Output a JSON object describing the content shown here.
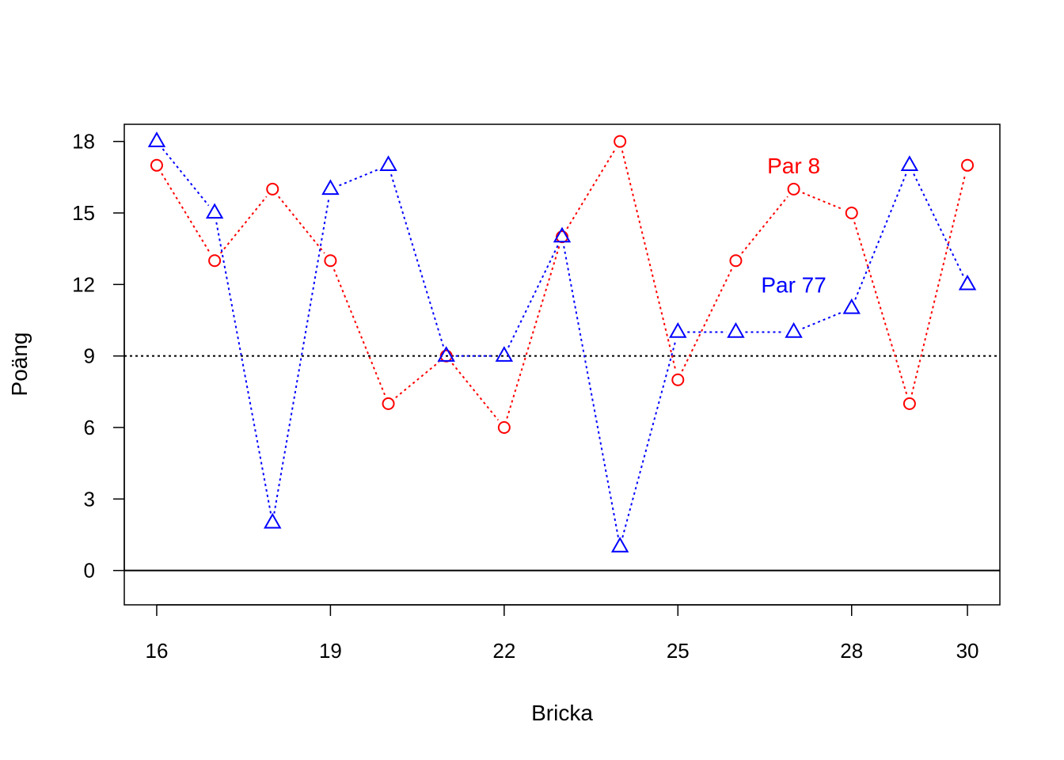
{
  "chart_data": {
    "type": "line",
    "xlabel": "Bricka",
    "ylabel": "Poäng",
    "xlim": [
      15.44,
      30.56
    ],
    "ylim": [
      -1.44,
      18.72
    ],
    "x_ticks": [
      "16",
      "19",
      "22",
      "25",
      "28",
      "30"
    ],
    "y_ticks": [
      "0",
      "3",
      "6",
      "9",
      "12",
      "15",
      "18"
    ],
    "reference_lines": [
      {
        "y": 9,
        "style": "dotted",
        "color": "#000000"
      },
      {
        "y": 0,
        "style": "solid",
        "color": "#000000"
      }
    ],
    "x": [
      16,
      17,
      18,
      19,
      20,
      21,
      22,
      23,
      24,
      25,
      26,
      27,
      28,
      29,
      30
    ],
    "series": [
      {
        "name": "Par 8",
        "color": "#ff0000",
        "marker": "circle",
        "line_style": "dotted",
        "values": [
          17,
          13,
          16,
          13,
          7,
          9,
          6,
          14,
          18,
          8,
          13,
          16,
          15,
          7,
          17
        ]
      },
      {
        "name": "Par 77",
        "color": "#0000ff",
        "marker": "triangle",
        "line_style": "dotted",
        "values": [
          18,
          15,
          2,
          16,
          17,
          9,
          9,
          14,
          1,
          10,
          10,
          10,
          11,
          17,
          12
        ]
      }
    ],
    "annotations": [
      {
        "text": "Par 8",
        "x": 27.0,
        "y": 17,
        "color": "#ff0000"
      },
      {
        "text": "Par 77",
        "x": 27.0,
        "y": 12,
        "color": "#0000ff"
      }
    ],
    "grid": false,
    "legend": "none"
  }
}
